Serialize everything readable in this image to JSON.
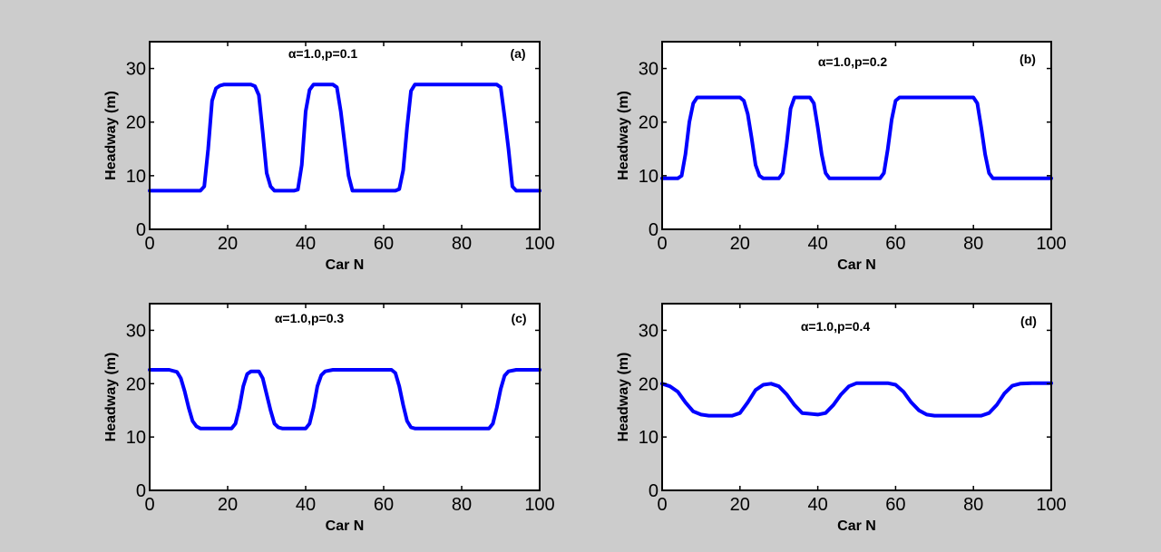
{
  "colors": {
    "figure_background": "#cccccc",
    "axes_background": "#ffffff",
    "line": "#0000ff"
  },
  "chart_data": [
    {
      "type": "line",
      "annotation": "α=1.0,p=0.1",
      "panel_label": "(a)",
      "xlabel": "Car N",
      "ylabel": "Headway (m)",
      "xlim": [
        0,
        100
      ],
      "ylim": [
        0,
        35
      ],
      "xticks": [
        0,
        20,
        40,
        60,
        80,
        100
      ],
      "yticks": [
        0,
        10,
        20,
        30
      ],
      "grid": false,
      "series": [
        {
          "x": [
            0,
            13,
            14,
            15,
            16,
            17,
            18,
            19,
            26,
            27,
            28,
            29,
            30,
            31,
            32,
            37,
            38,
            39,
            40,
            41,
            42,
            47,
            48,
            49,
            50,
            51,
            52,
            63,
            64,
            65,
            66,
            67,
            68,
            89,
            90,
            91,
            92,
            93,
            94,
            100
          ],
          "y": [
            7.2,
            7.2,
            8,
            15,
            24,
            26.3,
            26.8,
            27,
            27,
            26.7,
            25,
            18,
            10.5,
            8,
            7.2,
            7.2,
            7.4,
            12,
            22,
            26,
            27,
            27,
            26.5,
            22,
            16,
            10,
            7.2,
            7.2,
            7.5,
            11,
            19,
            25.8,
            27,
            27,
            26.5,
            21,
            15,
            8,
            7.2,
            7.2
          ]
        }
      ]
    },
    {
      "type": "line",
      "annotation": "α=1.0,p=0.2",
      "panel_label": "(b)",
      "xlabel": "Car N",
      "ylabel": "Headway (m)",
      "xlim": [
        0,
        100
      ],
      "ylim": [
        0,
        35
      ],
      "xticks": [
        0,
        20,
        40,
        60,
        80,
        100
      ],
      "yticks": [
        0,
        10,
        20,
        30
      ],
      "grid": false,
      "series": [
        {
          "x": [
            0,
            4,
            5,
            6,
            7,
            8,
            9,
            20,
            21,
            22,
            23,
            24,
            25,
            26,
            30,
            31,
            32,
            33,
            34,
            38,
            39,
            40,
            41,
            42,
            43,
            56,
            57,
            58,
            59,
            60,
            61,
            80,
            81,
            82,
            83,
            84,
            85,
            100
          ],
          "y": [
            9.5,
            9.5,
            10,
            14,
            20,
            23.5,
            24.6,
            24.6,
            24,
            21.5,
            17,
            12,
            10,
            9.5,
            9.5,
            10.5,
            16,
            22.5,
            24.6,
            24.6,
            23.5,
            19,
            14,
            10.5,
            9.5,
            9.5,
            10.5,
            15,
            20.5,
            24,
            24.6,
            24.6,
            23.5,
            19,
            14,
            10.5,
            9.5,
            9.5
          ]
        }
      ]
    },
    {
      "type": "line",
      "annotation": "α=1.0,p=0.3",
      "panel_label": "(c)",
      "xlabel": "Car N",
      "ylabel": "Headway (m)",
      "xlim": [
        0,
        100
      ],
      "ylim": [
        0,
        35
      ],
      "xticks": [
        0,
        20,
        40,
        60,
        80,
        100
      ],
      "yticks": [
        0,
        10,
        20,
        30
      ],
      "grid": false,
      "series": [
        {
          "x": [
            0,
            5,
            7,
            8,
            9,
            10,
            11,
            12,
            13,
            21,
            22,
            23,
            24,
            25,
            26,
            28,
            29,
            30,
            31,
            32,
            33,
            34,
            40,
            41,
            42,
            43,
            44,
            45,
            47,
            62,
            63,
            64,
            65,
            66,
            67,
            68,
            87,
            88,
            89,
            90,
            91,
            92,
            94,
            100
          ],
          "y": [
            22.6,
            22.6,
            22.2,
            21,
            18.5,
            15.5,
            13,
            12,
            11.6,
            11.6,
            12.5,
            15.5,
            19.5,
            21.8,
            22.3,
            22.3,
            21,
            18,
            15,
            12.5,
            11.8,
            11.6,
            11.6,
            12.5,
            15.5,
            19.5,
            21.6,
            22.3,
            22.6,
            22.6,
            22,
            19.5,
            16,
            13,
            11.8,
            11.6,
            11.6,
            12.5,
            15.5,
            19,
            21.5,
            22.3,
            22.6,
            22.6
          ]
        }
      ]
    },
    {
      "type": "line",
      "annotation": "α=1.0,p=0.4",
      "panel_label": "(d)",
      "xlabel": "Car N",
      "ylabel": "Headway (m)",
      "xlim": [
        0,
        100
      ],
      "ylim": [
        0,
        35
      ],
      "xticks": [
        0,
        20,
        40,
        60,
        80,
        100
      ],
      "yticks": [
        0,
        10,
        20,
        30
      ],
      "grid": false,
      "series": [
        {
          "x": [
            0,
            2,
            4,
            6,
            8,
            10,
            12,
            18,
            20,
            22,
            24,
            26,
            28,
            30,
            32,
            34,
            36,
            40,
            42,
            44,
            46,
            48,
            50,
            58,
            60,
            62,
            64,
            66,
            68,
            70,
            82,
            84,
            86,
            88,
            90,
            92,
            95,
            100
          ],
          "y": [
            20,
            19.5,
            18.5,
            16.5,
            14.8,
            14.2,
            14,
            14,
            14.5,
            16.5,
            18.8,
            19.8,
            20,
            19.5,
            18,
            16,
            14.5,
            14.2,
            14.5,
            16,
            18,
            19.5,
            20.1,
            20.1,
            19.8,
            18.5,
            16.5,
            15,
            14.2,
            14,
            14,
            14.5,
            16,
            18.2,
            19.6,
            20,
            20.1,
            20.1
          ]
        }
      ]
    }
  ]
}
